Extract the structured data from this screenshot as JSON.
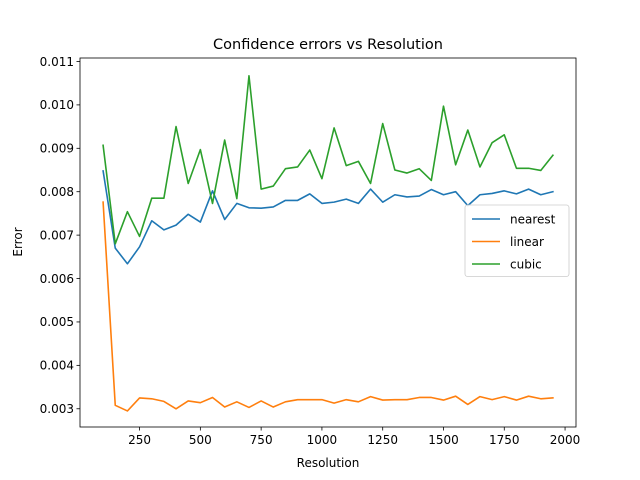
{
  "chart_data": {
    "type": "line",
    "title": "Confidence errors vs Resolution",
    "xlabel": "Resolution",
    "ylabel": "Error",
    "xlim": [
      5,
      2045
    ],
    "ylim": [
      0.00258,
      0.01108
    ],
    "x_ticks": [
      250,
      500,
      750,
      1000,
      1250,
      1500,
      1750,
      2000
    ],
    "y_ticks": [
      0.003,
      0.004,
      0.005,
      0.006,
      0.007,
      0.008,
      0.009,
      0.01,
      0.011
    ],
    "y_tick_labels": [
      "0.003",
      "0.004",
      "0.005",
      "0.006",
      "0.007",
      "0.008",
      "0.009",
      "0.010",
      "0.011"
    ],
    "grid": false,
    "legend_position": "center-right",
    "x": [
      100,
      150,
      200,
      250,
      300,
      350,
      400,
      450,
      500,
      550,
      600,
      650,
      700,
      750,
      800,
      850,
      900,
      950,
      1000,
      1050,
      1100,
      1150,
      1200,
      1250,
      1300,
      1350,
      1400,
      1450,
      1500,
      1550,
      1600,
      1650,
      1700,
      1750,
      1800,
      1850,
      1900,
      1950
    ],
    "series": [
      {
        "name": "nearest",
        "color": "#1f77b4",
        "values": [
          0.00848,
          0.0067,
          0.00634,
          0.00673,
          0.00733,
          0.00712,
          0.00723,
          0.00748,
          0.0073,
          0.00802,
          0.00736,
          0.00773,
          0.00763,
          0.00762,
          0.00765,
          0.0078,
          0.0078,
          0.00795,
          0.00773,
          0.00776,
          0.00783,
          0.00773,
          0.00806,
          0.00776,
          0.00793,
          0.00788,
          0.0079,
          0.00805,
          0.00793,
          0.008,
          0.00768,
          0.00793,
          0.00796,
          0.00802,
          0.00795,
          0.00806,
          0.00793,
          0.008
        ]
      },
      {
        "name": "linear",
        "color": "#ff7f0e",
        "values": [
          0.00776,
          0.00308,
          0.00295,
          0.00325,
          0.00323,
          0.00317,
          0.003,
          0.00318,
          0.00314,
          0.00326,
          0.00304,
          0.00316,
          0.00303,
          0.00318,
          0.00304,
          0.00316,
          0.00321,
          0.00321,
          0.00321,
          0.00313,
          0.00321,
          0.00316,
          0.00328,
          0.0032,
          0.00321,
          0.00321,
          0.00326,
          0.00326,
          0.0032,
          0.00329,
          0.0031,
          0.00328,
          0.00321,
          0.00328,
          0.0032,
          0.00329,
          0.00323,
          0.00325
        ]
      },
      {
        "name": "cubic",
        "color": "#2ca02c",
        "values": [
          0.00907,
          0.0068,
          0.00754,
          0.00697,
          0.00785,
          0.00785,
          0.0095,
          0.00819,
          0.00897,
          0.00773,
          0.00919,
          0.00784,
          0.01067,
          0.00806,
          0.00813,
          0.00853,
          0.00857,
          0.00896,
          0.0083,
          0.00947,
          0.0086,
          0.0087,
          0.00819,
          0.00957,
          0.0085,
          0.00843,
          0.00853,
          0.00826,
          0.00997,
          0.00862,
          0.00942,
          0.00857,
          0.00913,
          0.00931,
          0.00854,
          0.00854,
          0.00849,
          0.00884
        ]
      }
    ]
  }
}
